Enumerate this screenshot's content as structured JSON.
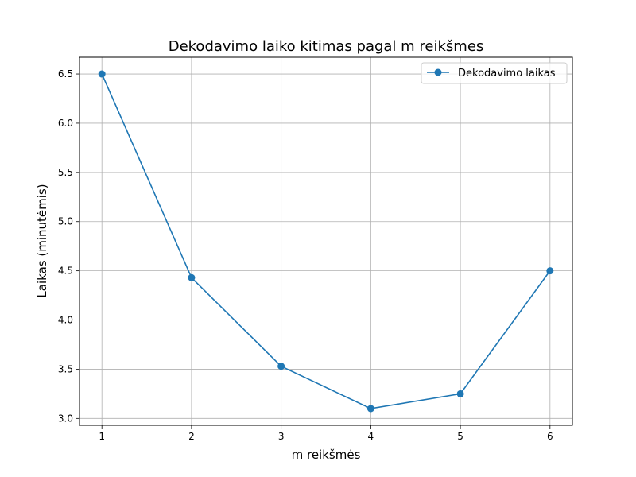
{
  "chart_data": {
    "type": "line",
    "title": "Dekodavimo laiko kitimas pagal m reikšmes",
    "xlabel": "m reikšmės",
    "ylabel": "Laikas (minutėmis)",
    "x": [
      1,
      2,
      3,
      4,
      5,
      6
    ],
    "xticks": [
      "1",
      "2",
      "3",
      "4",
      "5",
      "6"
    ],
    "yticks": [
      "3.0",
      "3.5",
      "4.0",
      "4.5",
      "5.0",
      "5.5",
      "6.0",
      "6.5"
    ],
    "ytick_values": [
      3.0,
      3.5,
      4.0,
      4.5,
      5.0,
      5.5,
      6.0,
      6.5
    ],
    "xlim": [
      0.75,
      6.25
    ],
    "ylim": [
      2.93,
      6.67
    ],
    "grid": true,
    "legend_position": "top-right",
    "series": [
      {
        "name": "Dekodavimo laikas",
        "values": [
          6.5,
          4.43,
          3.53,
          3.1,
          3.25,
          4.5
        ],
        "color": "#1f77b4",
        "marker": "circle"
      }
    ]
  }
}
